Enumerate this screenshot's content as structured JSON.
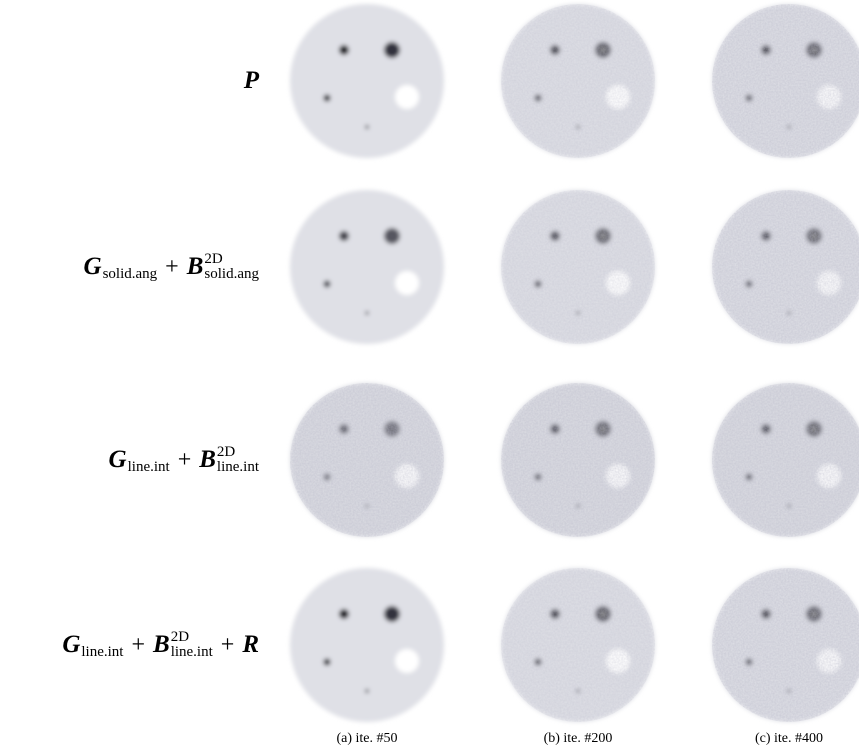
{
  "rows": [
    {
      "label": [
        {
          "sym": "P"
        }
      ]
    },
    {
      "label": [
        {
          "sym": "G",
          "sub": "solid.ang"
        },
        "+",
        {
          "sym": "B",
          "sub": "solid.ang",
          "sup": "2D"
        }
      ]
    },
    {
      "label": [
        {
          "sym": "G",
          "sub": "line.int"
        },
        "+",
        {
          "sym": "B",
          "sub": "line.int",
          "sup": "2D"
        }
      ]
    },
    {
      "label": [
        {
          "sym": "G",
          "sub": "line.int"
        },
        "+",
        {
          "sym": "B",
          "sub": "line.int",
          "sup": "2D"
        },
        "+",
        {
          "sym": "R"
        }
      ]
    }
  ],
  "columns": [
    {
      "caption": "(a) ite. #50"
    },
    {
      "caption": "(b) ite. #200"
    },
    {
      "caption": "(c) ite. #400"
    }
  ]
}
